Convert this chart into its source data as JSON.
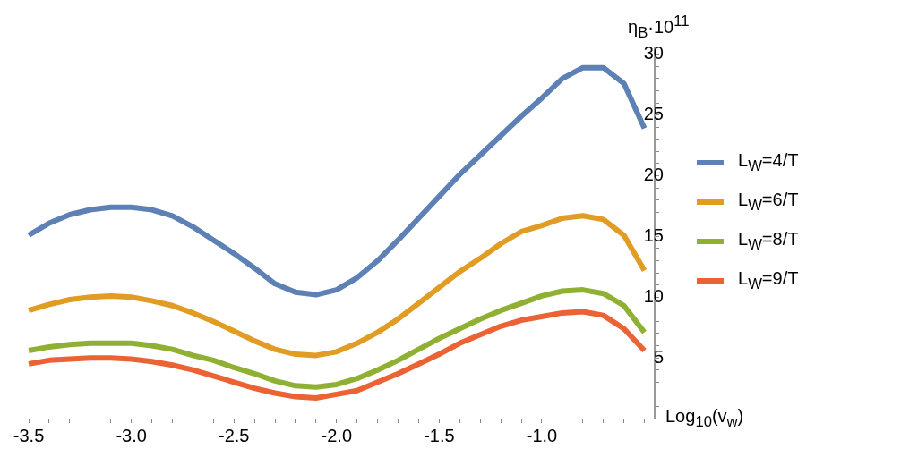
{
  "chart_data": {
    "type": "line",
    "xlabel": "Log$_{10}$(v$_{w}$)",
    "ylabel": "η$_{B}$·10$^{11}$",
    "x": [
      -3.5,
      -3.4,
      -3.3,
      -3.2,
      -3.1,
      -3.0,
      -2.9,
      -2.8,
      -2.7,
      -2.6,
      -2.5,
      -2.4,
      -2.3,
      -2.2,
      -2.1,
      -2.0,
      -1.9,
      -1.8,
      -1.7,
      -1.6,
      -1.5,
      -1.4,
      -1.3,
      -1.2,
      -1.1,
      -1.0,
      -0.9,
      -0.8,
      -0.7,
      -0.6,
      -0.5
    ],
    "series": [
      {
        "name": "L$_{W}$=4/T",
        "color": "#5e81b5",
        "values": [
          15.1,
          16.1,
          16.8,
          17.2,
          17.4,
          17.4,
          17.2,
          16.7,
          15.8,
          14.7,
          13.6,
          12.4,
          11.1,
          10.4,
          10.2,
          10.6,
          11.6,
          13.0,
          14.7,
          16.5,
          18.3,
          20.1,
          21.7,
          23.3,
          24.9,
          26.4,
          28.0,
          28.9,
          28.9,
          27.6,
          23.9
        ]
      },
      {
        "name": "L$_{W}$=6/T",
        "color": "#e19c24",
        "values": [
          8.9,
          9.4,
          9.8,
          10.0,
          10.1,
          10.0,
          9.7,
          9.3,
          8.7,
          8.0,
          7.2,
          6.4,
          5.7,
          5.3,
          5.2,
          5.5,
          6.2,
          7.1,
          8.2,
          9.5,
          10.8,
          12.1,
          13.2,
          14.4,
          15.4,
          15.9,
          16.5,
          16.7,
          16.4,
          15.1,
          12.2
        ]
      },
      {
        "name": "L$_{W}$=8/T",
        "color": "#8fb032",
        "values": [
          5.6,
          5.9,
          6.1,
          6.2,
          6.2,
          6.2,
          6.0,
          5.7,
          5.2,
          4.8,
          4.2,
          3.7,
          3.1,
          2.7,
          2.6,
          2.8,
          3.3,
          4.0,
          4.8,
          5.7,
          6.6,
          7.4,
          8.2,
          8.9,
          9.5,
          10.1,
          10.5,
          10.6,
          10.3,
          9.3,
          7.1
        ]
      },
      {
        "name": "L$_{W}$=9/T",
        "color": "#eb6235",
        "values": [
          4.5,
          4.8,
          4.9,
          5.0,
          5.0,
          4.9,
          4.7,
          4.4,
          4.0,
          3.5,
          3.0,
          2.5,
          2.1,
          1.8,
          1.7,
          2.0,
          2.3,
          3.0,
          3.7,
          4.5,
          5.3,
          6.2,
          6.9,
          7.6,
          8.1,
          8.4,
          8.7,
          8.8,
          8.5,
          7.4,
          5.6
        ]
      }
    ],
    "xlim": [
      -3.57,
      -0.45
    ],
    "ylim": [
      0,
      30.5
    ],
    "xticks": [
      {
        "value": -3.5,
        "label": "-3.5"
      },
      {
        "value": -3.4,
        "label": null
      },
      {
        "value": -3.3,
        "label": null
      },
      {
        "value": -3.2,
        "label": null
      },
      {
        "value": -3.1,
        "label": null
      },
      {
        "value": -3.0,
        "label": "-3.0"
      },
      {
        "value": -2.9,
        "label": null
      },
      {
        "value": -2.8,
        "label": null
      },
      {
        "value": -2.7,
        "label": null
      },
      {
        "value": -2.6,
        "label": null
      },
      {
        "value": -2.5,
        "label": "-2.5"
      },
      {
        "value": -2.4,
        "label": null
      },
      {
        "value": -2.3,
        "label": null
      },
      {
        "value": -2.2,
        "label": null
      },
      {
        "value": -2.1,
        "label": null
      },
      {
        "value": -2.0,
        "label": "-2.0"
      },
      {
        "value": -1.9,
        "label": null
      },
      {
        "value": -1.8,
        "label": null
      },
      {
        "value": -1.7,
        "label": null
      },
      {
        "value": -1.6,
        "label": null
      },
      {
        "value": -1.5,
        "label": "-1.5"
      },
      {
        "value": -1.4,
        "label": null
      },
      {
        "value": -1.3,
        "label": null
      },
      {
        "value": -1.2,
        "label": null
      },
      {
        "value": -1.1,
        "label": null
      },
      {
        "value": -1.0,
        "label": "-1.0"
      },
      {
        "value": -0.9,
        "label": null
      },
      {
        "value": -0.8,
        "label": null
      },
      {
        "value": -0.7,
        "label": null
      },
      {
        "value": -0.6,
        "label": null
      },
      {
        "value": -0.5,
        "label": null
      }
    ],
    "yticks": [
      {
        "value": 1,
        "label": null
      },
      {
        "value": 2,
        "label": null
      },
      {
        "value": 3,
        "label": null
      },
      {
        "value": 4,
        "label": null
      },
      5,
      {
        "value": 6,
        "label": null
      },
      {
        "value": 7,
        "label": null
      },
      {
        "value": 8,
        "label": null
      },
      {
        "value": 9,
        "label": null
      },
      10,
      {
        "value": 11,
        "label": null
      },
      {
        "value": 12,
        "label": null
      },
      {
        "value": 13,
        "label": null
      },
      {
        "value": 14,
        "label": null
      },
      15,
      {
        "value": 16,
        "label": null
      },
      {
        "value": 17,
        "label": null
      },
      {
        "value": 18,
        "label": null
      },
      {
        "value": 19,
        "label": null
      },
      20,
      {
        "value": 21,
        "label": null
      },
      {
        "value": 22,
        "label": null
      },
      {
        "value": 23,
        "label": null
      },
      {
        "value": 24,
        "label": null
      },
      25,
      {
        "value": 26,
        "label": null
      },
      {
        "value": 27,
        "label": null
      },
      {
        "value": 28,
        "label": null
      },
      {
        "value": 29,
        "label": null
      },
      30
    ],
    "grid": false,
    "legend": "right",
    "marker": "none",
    "line_style": "solid"
  }
}
